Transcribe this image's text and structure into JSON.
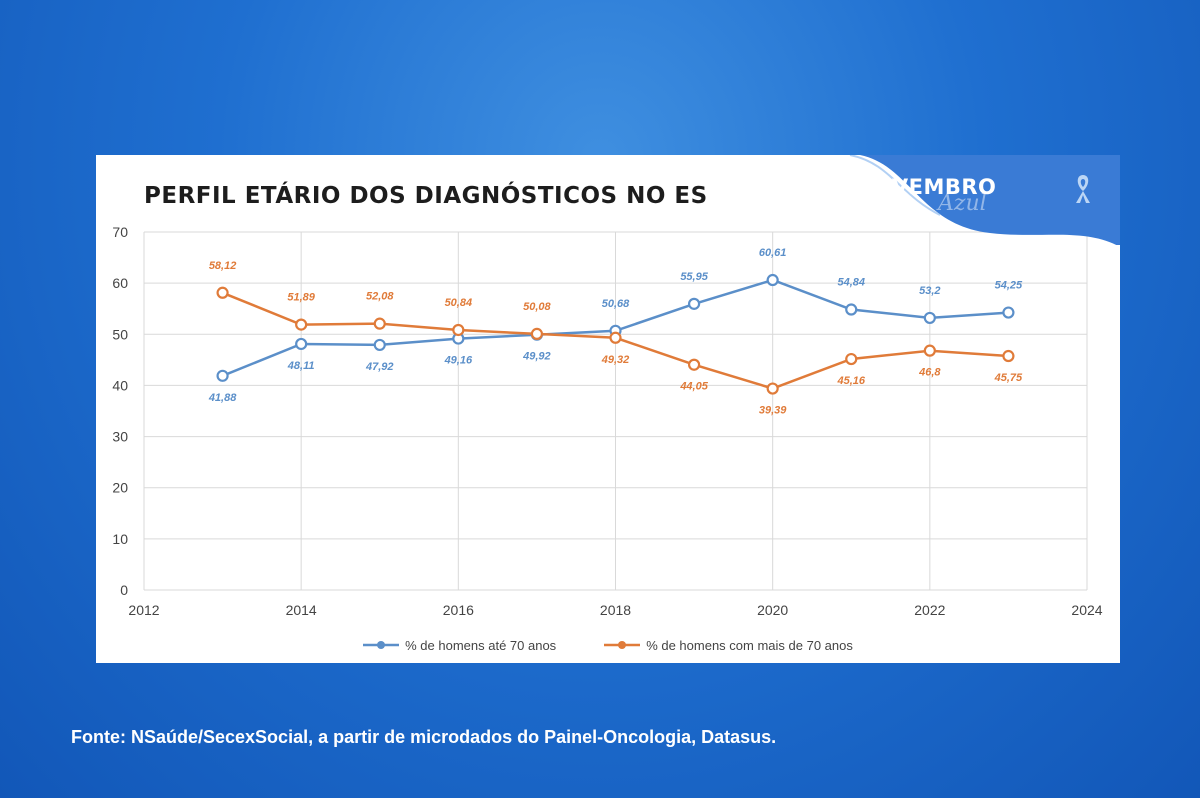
{
  "chart_data": {
    "type": "line",
    "title": "PERFIL ETÁRIO DOS DIAGNÓSTICOS NO ES",
    "xlabel": "",
    "ylabel": "",
    "xlim": [
      2012,
      2024
    ],
    "ylim": [
      0,
      70
    ],
    "x_ticks": [
      "2012",
      "2014",
      "2016",
      "2018",
      "2020",
      "2022",
      "2024"
    ],
    "y_ticks": [
      "0",
      "10",
      "20",
      "30",
      "40",
      "50",
      "60",
      "70"
    ],
    "x": [
      2013,
      2014,
      2015,
      2016,
      2017,
      2018,
      2019,
      2020,
      2021,
      2022,
      2023
    ],
    "grid": true,
    "legend_position": "bottom",
    "series": [
      {
        "name": "% de homens até 70 anos",
        "color": "#5b8fc9",
        "values": [
          41.88,
          48.11,
          47.92,
          49.16,
          49.92,
          50.68,
          55.95,
          60.61,
          54.84,
          53.2,
          54.25
        ],
        "labels": [
          "41,88",
          "48,11",
          "47,92",
          "49,16",
          "49,92",
          "50,68",
          "55,95",
          "60,61",
          "54,84",
          "53,2",
          "54,25"
        ]
      },
      {
        "name": "% de homens com mais de 70 anos",
        "color": "#e07b39",
        "values": [
          58.12,
          51.89,
          52.08,
          50.84,
          50.08,
          49.32,
          44.05,
          39.39,
          45.16,
          46.8,
          45.75
        ],
        "labels": [
          "58,12",
          "51,89",
          "52,08",
          "50,84",
          "50,08",
          "49,32",
          "44,05",
          "39,39",
          "45,16",
          "46,8",
          "45,75"
        ]
      }
    ]
  },
  "brand": {
    "name": "NOVEMBRO",
    "script": "Azul",
    "color": "#3a7bd5"
  },
  "source_text": "Fonte: NSaúde/SecexSocial, a partir de microdados do Painel-Oncologia, Datasus."
}
